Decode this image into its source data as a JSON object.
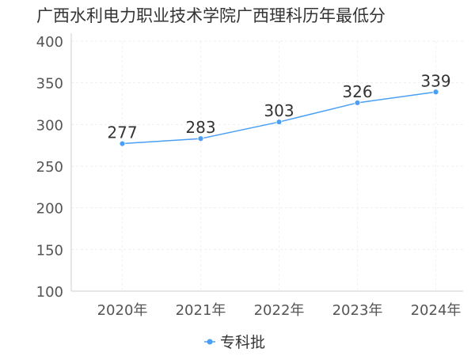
{
  "chart_data": {
    "type": "line",
    "title": "广西水利电力职业技术学院广西理科历年最低分",
    "categories": [
      "2020年",
      "2021年",
      "2022年",
      "2023年",
      "2024年"
    ],
    "series": [
      {
        "name": "专科批",
        "values": [
          277,
          283,
          303,
          326,
          339
        ],
        "color": "#4a9ff5"
      }
    ],
    "ylim": [
      100,
      400
    ],
    "yticks": [
      100,
      150,
      200,
      250,
      300,
      350,
      400
    ],
    "xlabel": "",
    "ylabel": "",
    "grid": true,
    "legend": "bottom-center",
    "data_labels": true
  }
}
